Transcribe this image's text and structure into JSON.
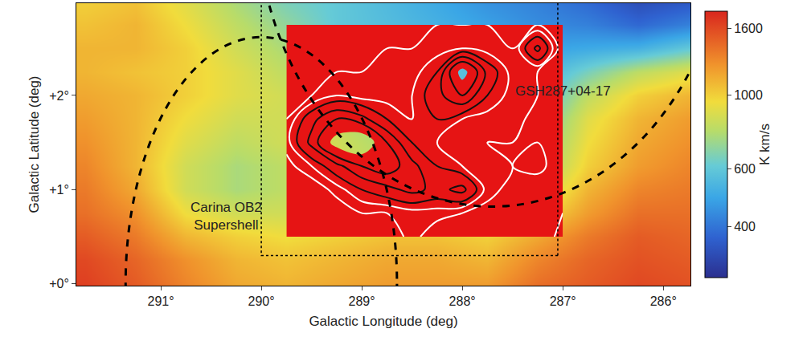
{
  "chart_data": {
    "type": "heatmap",
    "xlabel": "Galactic Longitude (deg)",
    "ylabel": "Galactic Latitude (deg)",
    "xlim": [
      291.84,
      285.73
    ],
    "ylim": [
      -0.02,
      2.98
    ],
    "xticks": [
      {
        "value": 291,
        "label": "291°"
      },
      {
        "value": 290,
        "label": "290°"
      },
      {
        "value": 289,
        "label": "289°"
      },
      {
        "value": 288,
        "label": "288°"
      },
      {
        "value": 287,
        "label": "287°"
      },
      {
        "value": 286,
        "label": "286°"
      }
    ],
    "yticks": [
      {
        "value": 0,
        "label": "+0°"
      },
      {
        "value": 1,
        "label": "+1°"
      },
      {
        "value": 2,
        "label": "+2°"
      }
    ],
    "x": [
      291.75,
      291.25,
      290.75,
      290.25,
      289.75,
      289.25,
      288.75,
      288.25,
      287.75,
      287.25,
      286.75,
      286.25,
      285.75
    ],
    "y": [
      0.0,
      0.25,
      0.5,
      0.75,
      1.0,
      1.25,
      1.5,
      1.75,
      2.0,
      2.25,
      2.5,
      2.75,
      3.0
    ],
    "cells": [
      [
        1650,
        1500,
        1300,
        1150,
        1100,
        1150,
        1200,
        1200,
        1200,
        1400,
        1500,
        1600,
        1550
      ],
      [
        1600,
        1450,
        1250,
        1100,
        1050,
        1100,
        1150,
        1150,
        1100,
        1300,
        1450,
        1550,
        1500
      ],
      [
        1500,
        1350,
        1100,
        1000,
        950,
        1000,
        1050,
        1050,
        1000,
        1150,
        1350,
        1500,
        1450
      ],
      [
        1400,
        1250,
        950,
        850,
        850,
        900,
        950,
        900,
        850,
        950,
        1200,
        1400,
        1400
      ],
      [
        1350,
        1150,
        850,
        750,
        800,
        850,
        850,
        800,
        700,
        800,
        1100,
        1300,
        1350
      ],
      [
        1300,
        1100,
        850,
        750,
        800,
        850,
        800,
        700,
        600,
        700,
        1000,
        1200,
        1300
      ],
      [
        1250,
        1100,
        900,
        800,
        850,
        850,
        750,
        650,
        550,
        650,
        950,
        1150,
        1250
      ],
      [
        1200,
        1100,
        950,
        850,
        850,
        800,
        700,
        600,
        550,
        600,
        900,
        1100,
        1200
      ],
      [
        1150,
        1100,
        1000,
        900,
        850,
        750,
        650,
        600,
        550,
        550,
        800,
        1000,
        1100
      ],
      [
        1100,
        1050,
        1000,
        900,
        800,
        700,
        650,
        600,
        550,
        520,
        650,
        800,
        900
      ],
      [
        1100,
        1100,
        1000,
        850,
        750,
        650,
        600,
        560,
        520,
        480,
        500,
        520,
        600
      ],
      [
        1050,
        1100,
        950,
        800,
        700,
        600,
        560,
        520,
        480,
        440,
        420,
        380,
        420
      ],
      [
        1000,
        1050,
        900,
        750,
        650,
        600,
        550,
        500,
        450,
        420,
        380,
        330,
        350
      ]
    ],
    "colorbar": {
      "title": "K km/s",
      "range": [
        280,
        1800
      ],
      "ticks": [
        400,
        600,
        1000,
        1600
      ],
      "scale": "log"
    },
    "contour": {
      "x": [
        289.75,
        289.5,
        289.25,
        289.0,
        288.75,
        288.5,
        288.25,
        288.0,
        287.75,
        287.5,
        287.25,
        287.0
      ],
      "y": [
        0.5,
        0.75,
        1.0,
        1.25,
        1.5,
        1.75,
        2.0,
        2.25,
        2.5,
        2.75
      ],
      "z": [
        [
          0,
          0,
          0,
          0,
          0,
          1.5,
          0,
          0,
          0,
          0,
          0,
          1.5
        ],
        [
          0,
          0,
          0,
          1,
          1,
          1.5,
          1.5,
          1,
          0.5,
          0,
          0,
          1
        ],
        [
          0,
          0,
          1.5,
          3,
          4,
          5,
          4,
          5,
          1.5,
          0.5,
          0,
          0
        ],
        [
          0.5,
          2,
          4,
          6,
          7,
          5,
          3,
          2,
          1.5,
          1,
          1.5,
          0
        ],
        [
          1.5,
          5,
          9,
          10,
          6,
          3,
          2,
          1.5,
          1,
          1,
          1,
          0
        ],
        [
          1,
          4,
          6,
          5,
          3,
          2,
          3,
          2,
          1.5,
          1.5,
          0.5,
          0
        ],
        [
          0,
          1,
          2,
          1.5,
          1.5,
          2,
          4,
          6,
          3,
          1.5,
          1,
          0
        ],
        [
          0,
          0,
          1,
          1,
          1.5,
          1.5,
          3,
          9,
          4,
          1.5,
          1,
          0
        ],
        [
          0,
          0,
          0,
          0.5,
          1,
          1,
          1.5,
          2,
          1.5,
          1,
          5,
          0
        ],
        [
          0,
          0,
          0,
          0,
          0,
          0.5,
          1,
          1,
          1,
          0.5,
          1,
          0
        ]
      ],
      "white_levels": [
        1,
        2
      ],
      "black_levels": [
        3,
        4.5,
        6
      ],
      "peak_level": 8
    },
    "shells": [
      {
        "center": [
          290.0,
          0.0
        ],
        "radius": [
          1.35,
          2.62
        ]
      },
      {
        "center": [
          287.7,
          4.0
        ],
        "radius": [
          2.35,
          3.18
        ]
      }
    ],
    "box": {
      "x": [
        287.05,
        290.0
      ],
      "y": [
        0.3,
        3.05
      ]
    },
    "annotations": [
      {
        "text": [
          "GSH287+04-17"
        ],
        "x": 287.0,
        "y": 2.05
      },
      {
        "text": [
          "Carina OB2",
          "Supershell"
        ],
        "x": 290.35,
        "y": 0.72
      }
    ]
  }
}
